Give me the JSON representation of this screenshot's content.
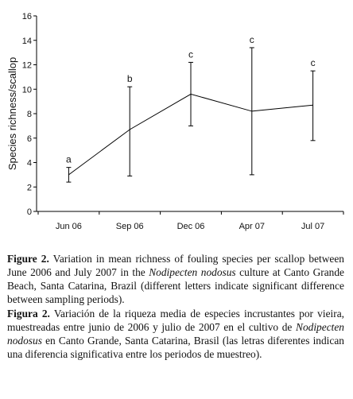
{
  "chart_data": {
    "type": "line",
    "categories": [
      "Jun 06",
      "Sep 06",
      "Dec 06",
      "Apr 07",
      "Jul 07"
    ],
    "series": [
      {
        "values": [
          3.0,
          6.7,
          9.6,
          8.2,
          8.7
        ],
        "error_low": [
          2.4,
          2.9,
          7.0,
          3.0,
          5.8
        ],
        "error_high": [
          3.6,
          10.2,
          12.2,
          13.4,
          11.5
        ],
        "significance_letters": [
          "a",
          "b",
          "c",
          "c",
          "c"
        ]
      }
    ],
    "xlabel": "",
    "ylabel": "Species richness/scallop",
    "ylim": [
      0,
      16
    ],
    "yticks": [
      "0",
      "2",
      "4",
      "6",
      "8",
      "10",
      "12",
      "14",
      "16"
    ],
    "grid": false,
    "line_color": "#000000"
  },
  "caption_en": {
    "label": "Figure 2.",
    "text1": " Variation in mean richness of fouling species per scallop between June 2006 and July 2007 in the ",
    "species": "Nodipecten nodosus",
    "text2": " culture at Canto Grande Beach, Santa Catarina, Brazil (different letters indicate significant difference between sampling periods)."
  },
  "caption_es": {
    "label": "Figura 2.",
    "text1": " Variación de la riqueza media de especies incrustantes por vieira, muestreadas entre junio de 2006 y julio de 2007 en el cultivo de ",
    "species": "Nodipecten nodosus",
    "text2": " en Canto Grande, Santa Catarina, Brasil (las letras diferentes indican una diferencia significativa entre los periodos de muestreo)."
  }
}
